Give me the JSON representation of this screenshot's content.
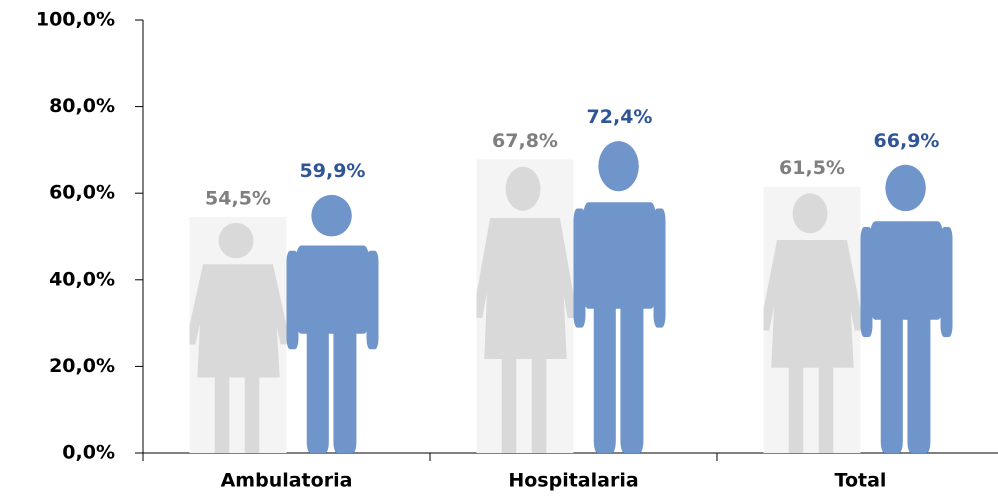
{
  "chart_data": {
    "type": "pictograph-bar",
    "categories": [
      "Ambulatoria",
      "Hospitalaria",
      "Total"
    ],
    "series": [
      {
        "color": "#d9d9d9",
        "values": [
          54.5,
          67.8,
          61.5
        ],
        "value_labels": [
          "54,5%",
          "67,8%",
          "61,5%"
        ]
      },
      {
        "color": "#6f95cb",
        "values": [
          59.9,
          72.4,
          66.9
        ],
        "value_labels": [
          "59,9%",
          "72,4%",
          "66,9%"
        ]
      }
    ],
    "ylim": [
      0,
      100
    ],
    "yticks": [
      {
        "value": 0,
        "label": "0,0%"
      },
      {
        "value": 20,
        "label": "20,0%"
      },
      {
        "value": 40,
        "label": "40,0%"
      },
      {
        "value": 60,
        "label": "60,0%"
      },
      {
        "value": 80,
        "label": "80,0%"
      },
      {
        "value": 100,
        "label": "100,0%"
      }
    ]
  }
}
